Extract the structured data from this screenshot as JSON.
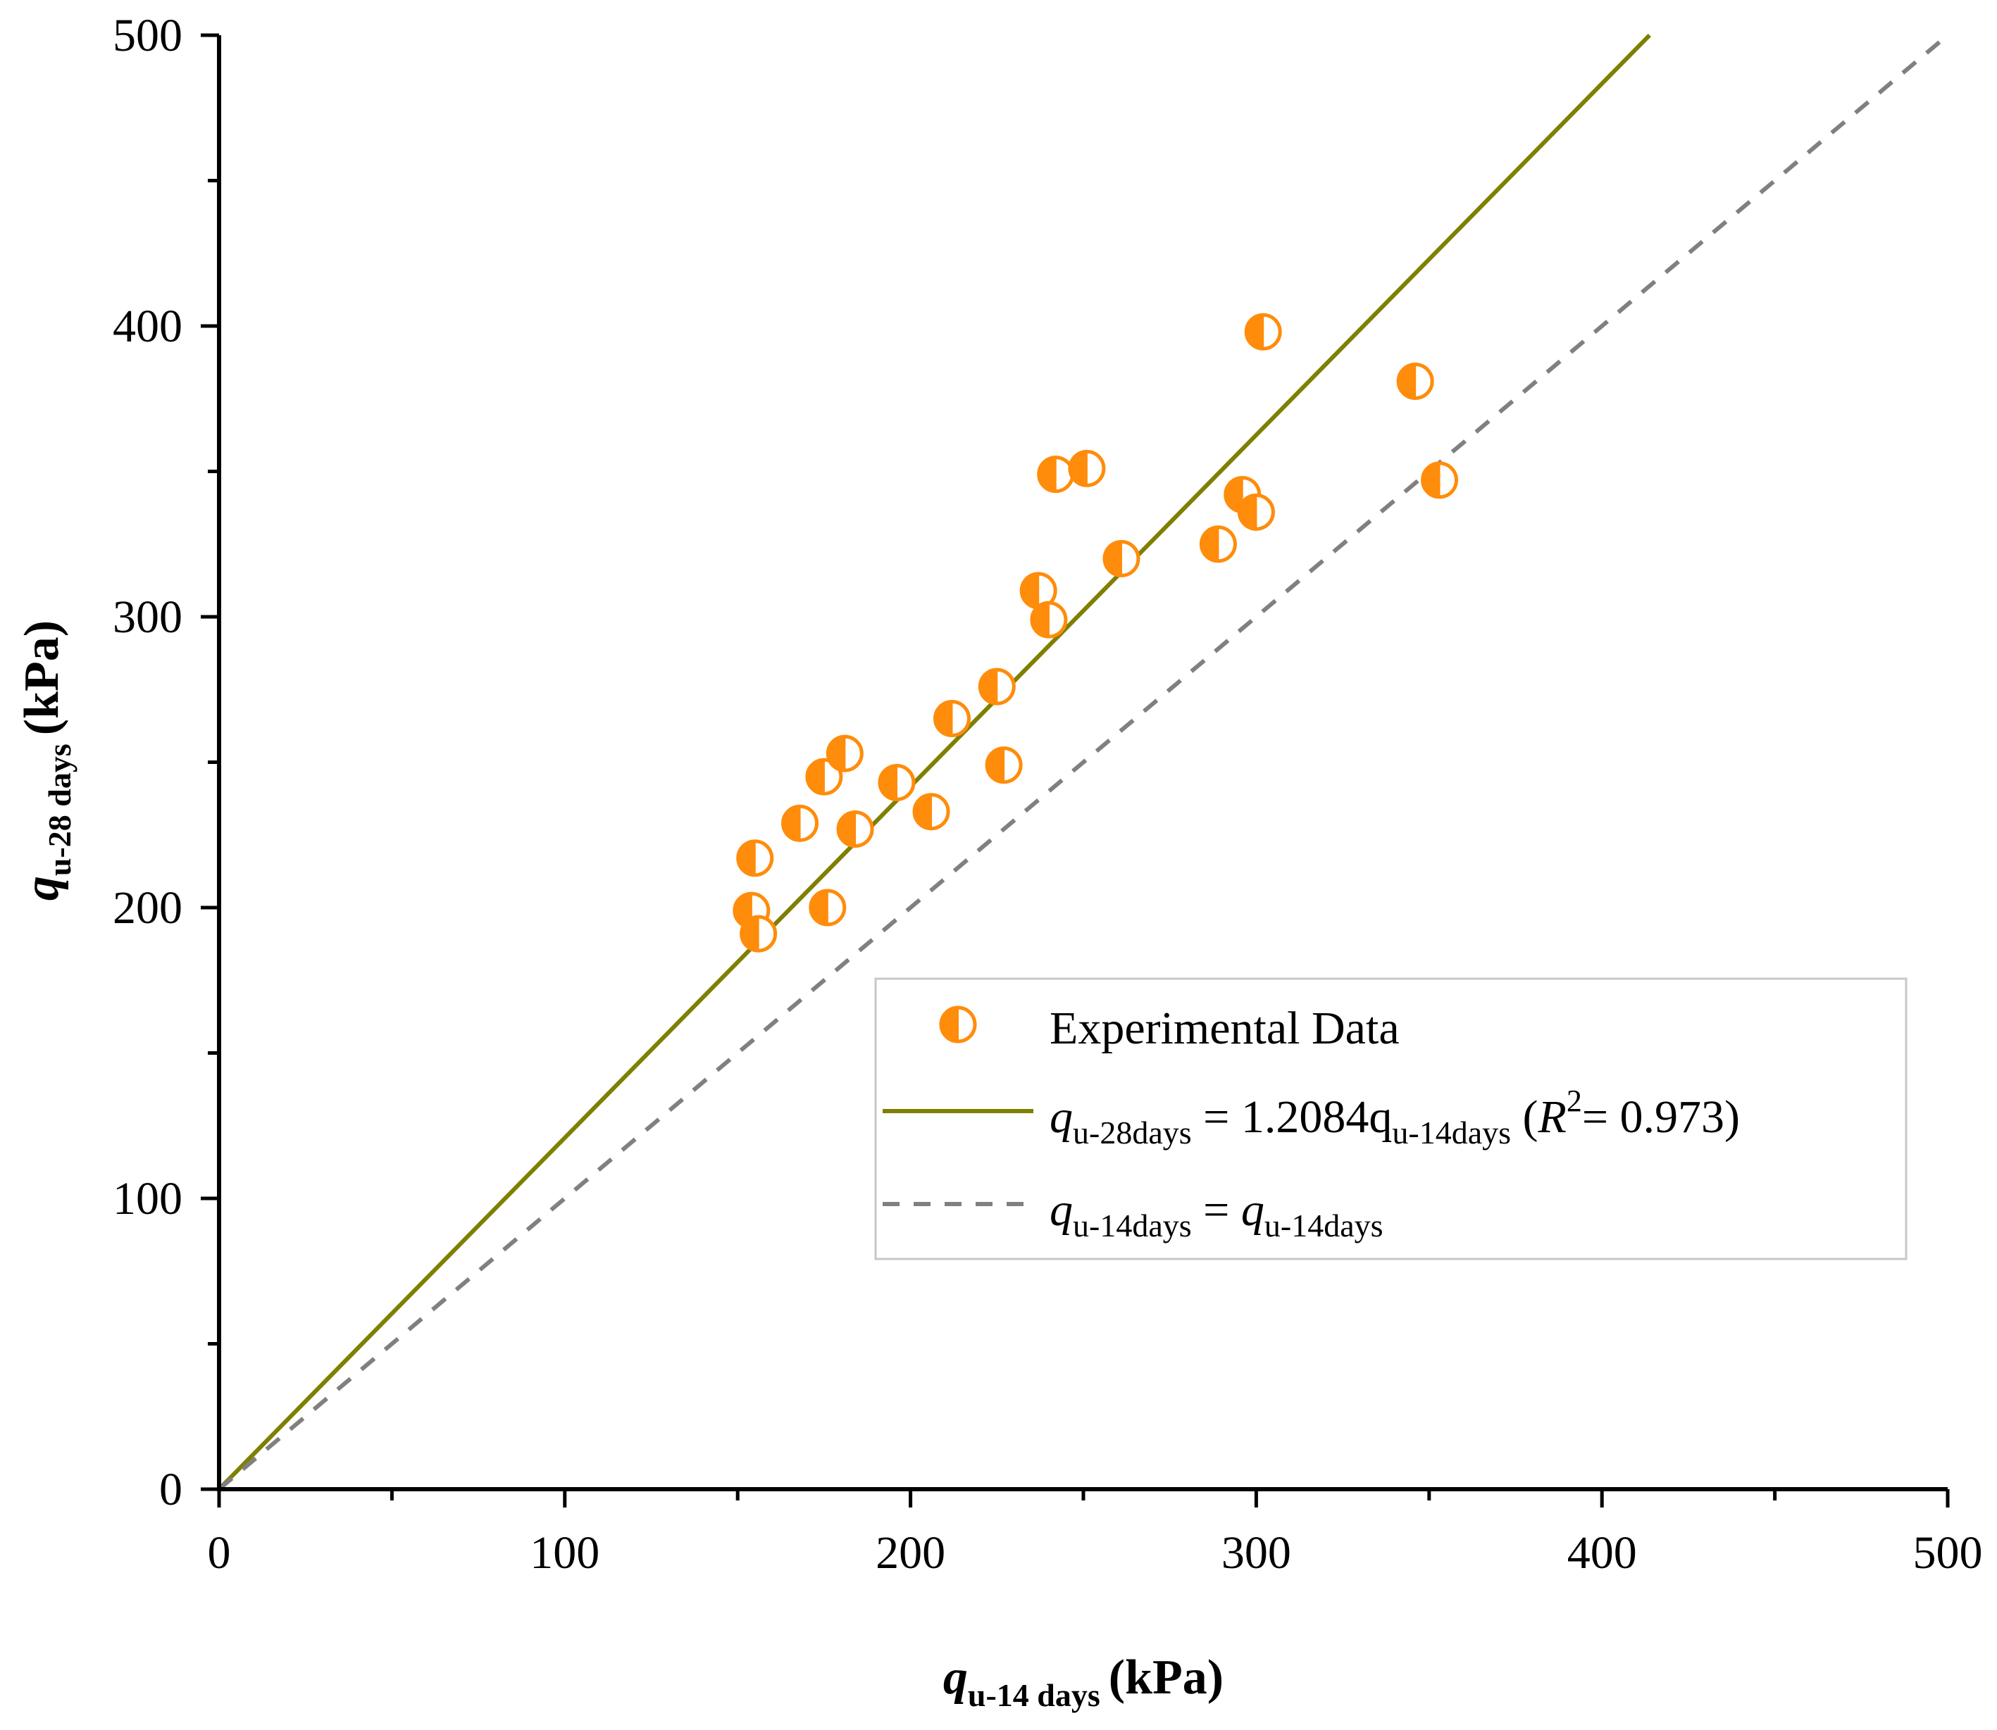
{
  "chart_data": {
    "type": "scatter",
    "title": "",
    "xlabel": {
      "var": "q",
      "sub": "u-14 days",
      "unit": "(kPa)"
    },
    "ylabel": {
      "var": "q",
      "sub": "u-28 days",
      "unit": "(kPa)"
    },
    "xlim": [
      0,
      500
    ],
    "ylim": [
      0,
      500
    ],
    "x_major_ticks": [
      0,
      100,
      200,
      300,
      400,
      500
    ],
    "y_major_ticks": [
      0,
      100,
      200,
      300,
      400,
      500
    ],
    "minor_tick_step": 50,
    "grid": false,
    "legend_position": "lower-right",
    "colors": {
      "points": "#ff8c0a",
      "fit": "#7f7f00",
      "identity": "#808080"
    },
    "series": [
      {
        "name": "Experimental Data",
        "kind": "points",
        "marker": "half-filled-circle",
        "points": [
          [
            154,
            199
          ],
          [
            155,
            217
          ],
          [
            156,
            191
          ],
          [
            168,
            229
          ],
          [
            175,
            245
          ],
          [
            176,
            200
          ],
          [
            181,
            253
          ],
          [
            184,
            227
          ],
          [
            196,
            243
          ],
          [
            206,
            233
          ],
          [
            212,
            265
          ],
          [
            225,
            276
          ],
          [
            227,
            249
          ],
          [
            237,
            309
          ],
          [
            240,
            299
          ],
          [
            242,
            349
          ],
          [
            251,
            351
          ],
          [
            261,
            320
          ],
          [
            289,
            325
          ],
          [
            296,
            342
          ],
          [
            300,
            336
          ],
          [
            302,
            398
          ],
          [
            346,
            381
          ],
          [
            353,
            347
          ]
        ]
      },
      {
        "name": "fit",
        "kind": "line",
        "style": "solid",
        "slope": 1.2084,
        "intercept": 0,
        "legend": {
          "lhs_var": "q",
          "lhs_sub": "u-28days",
          "eq": " = 1.2084q",
          "rhs_sub": "u-14days",
          "r2_open": " (",
          "r2_var": "R",
          "r2_sup": "2",
          "r2_val": "= 0.973)"
        }
      },
      {
        "name": "identity",
        "kind": "line",
        "style": "dashed",
        "slope": 1,
        "intercept": 0,
        "legend": {
          "lhs_var": "q",
          "lhs_sub": "u-14days",
          "eq": " = ",
          "rhs_var": "q",
          "rhs_sub": "u-14days"
        }
      }
    ]
  }
}
